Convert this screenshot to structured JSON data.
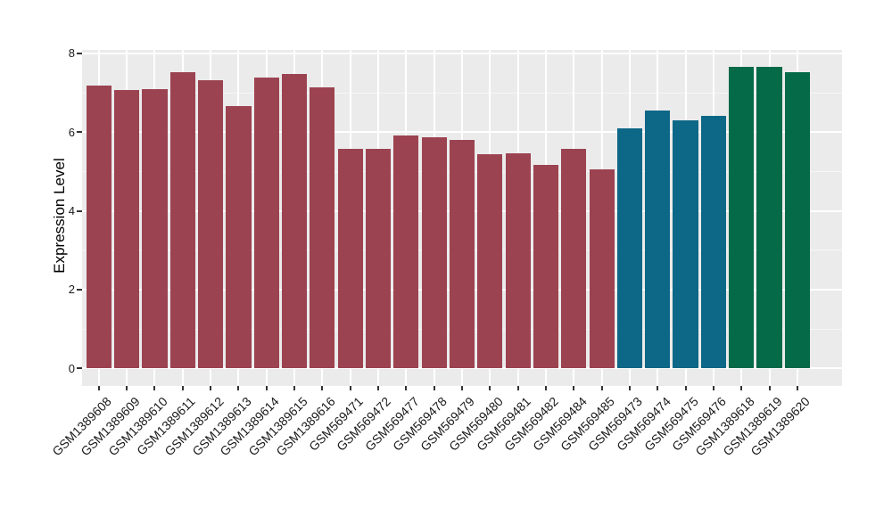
{
  "chart_data": {
    "type": "bar",
    "title": "",
    "xlabel": "",
    "ylabel": "Expression Level",
    "ylim": [
      0,
      8
    ],
    "yticks": [
      0,
      2,
      4,
      6,
      8
    ],
    "yticks_minor": [
      1,
      3,
      5,
      7
    ],
    "grid": true,
    "legend": false,
    "panel_background": "#EBEBEB",
    "gridline_color": "#FFFFFF",
    "categories": [
      "GSM1389608",
      "GSM1389609",
      "GSM1389610",
      "GSM1389611",
      "GSM1389612",
      "GSM1389613",
      "GSM1389614",
      "GSM1389615",
      "GSM1389616",
      "GSM569471",
      "GSM569472",
      "GSM569477",
      "GSM569478",
      "GSM569479",
      "GSM569480",
      "GSM569481",
      "GSM569482",
      "GSM569484",
      "GSM569485",
      "GSM569473",
      "GSM569474",
      "GSM569475",
      "GSM569476",
      "GSM1389618",
      "GSM1389619",
      "GSM1389620"
    ],
    "values": [
      7.18,
      7.08,
      7.1,
      7.52,
      7.32,
      6.67,
      7.39,
      7.48,
      7.13,
      5.58,
      5.58,
      5.92,
      5.88,
      5.8,
      5.43,
      5.47,
      5.17,
      5.58,
      5.06,
      6.09,
      6.55,
      6.3,
      6.41,
      7.65,
      7.67,
      7.52
    ],
    "bar_groups": [
      "maroon",
      "maroon",
      "maroon",
      "maroon",
      "maroon",
      "maroon",
      "maroon",
      "maroon",
      "maroon",
      "maroon",
      "maroon",
      "maroon",
      "maroon",
      "maroon",
      "maroon",
      "maroon",
      "maroon",
      "maroon",
      "maroon",
      "teal",
      "teal",
      "teal",
      "teal",
      "green",
      "green",
      "green"
    ],
    "palette": {
      "maroon": "#9C4351",
      "teal": "#0D6787",
      "green": "#046A47"
    }
  }
}
